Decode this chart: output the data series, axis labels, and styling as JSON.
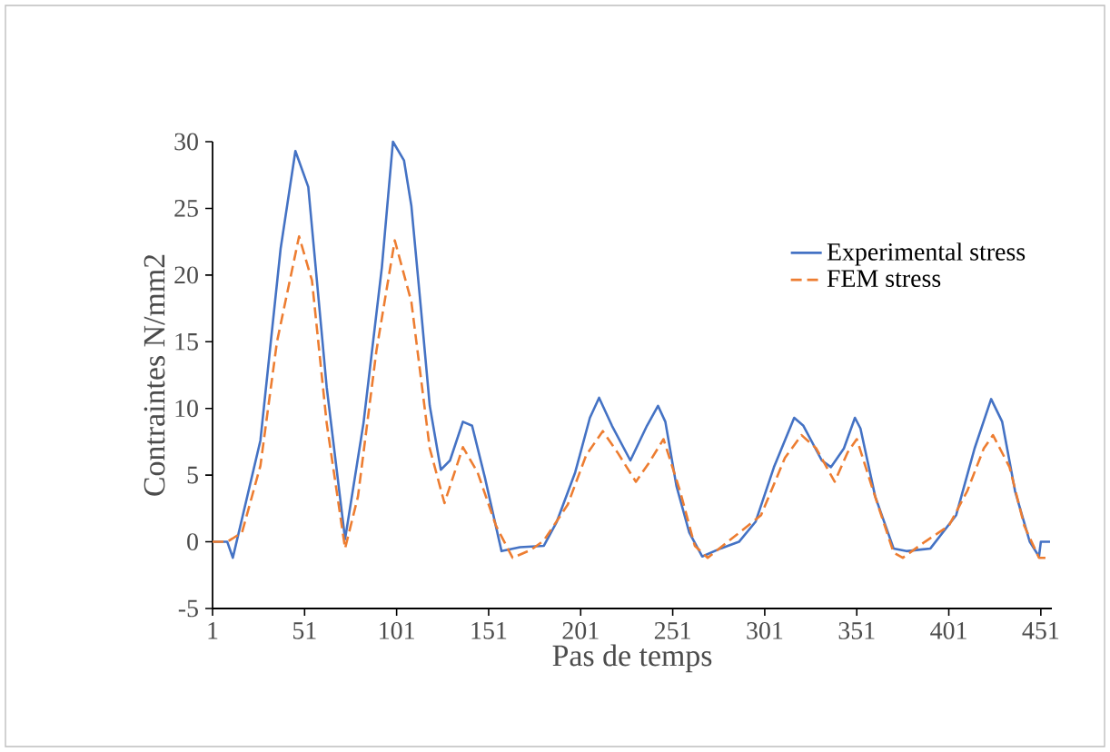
{
  "chart_data": {
    "type": "line",
    "xlabel": "Pas de temps",
    "ylabel": "Contraintes N/mm2",
    "xlim": [
      1,
      457
    ],
    "ylim": [
      -5,
      30
    ],
    "xticks": [
      1,
      51,
      101,
      151,
      201,
      251,
      301,
      351,
      401,
      451
    ],
    "yticks": [
      -5,
      0,
      5,
      10,
      15,
      20,
      25,
      30
    ],
    "grid": false,
    "legend": "top right",
    "marker": "none",
    "series": [
      {
        "name": "Experimental stress",
        "color": "#4472c4",
        "line_style": "solid",
        "x": [
          1,
          9,
          12,
          27,
          38,
          46,
          53,
          63,
          73,
          83,
          93,
          99,
          105,
          109,
          114,
          119,
          125,
          130,
          137,
          142,
          149,
          158,
          168,
          181,
          188,
          198,
          206,
          211,
          218,
          228,
          237,
          243,
          247,
          253,
          260,
          267,
          277,
          287,
          296,
          306,
          317,
          322,
          332,
          337,
          344,
          350,
          353,
          361,
          371,
          378,
          391,
          405,
          415,
          424,
          430,
          437,
          445,
          450,
          451,
          456
        ],
        "values": [
          0,
          0,
          -1.2,
          7.6,
          22,
          29.3,
          26.6,
          11.6,
          0.2,
          8.9,
          20.6,
          30,
          28.6,
          25.2,
          17.8,
          10.2,
          5.4,
          6.1,
          9,
          8.7,
          4.8,
          -0.7,
          -0.4,
          -0.3,
          1.5,
          5.2,
          9.3,
          10.8,
          8.7,
          6.1,
          8.7,
          10.2,
          9,
          4.2,
          0.7,
          -1.1,
          -0.5,
          0,
          1.5,
          5.6,
          9.3,
          8.7,
          6.1,
          5.6,
          7,
          9.3,
          8.5,
          3.4,
          -0.5,
          -0.7,
          -0.5,
          2,
          7,
          10.7,
          9,
          3.8,
          0,
          -1.1,
          0,
          0
        ]
      },
      {
        "name": "FEM stress",
        "color": "#ed7d31",
        "line_style": "dashed",
        "x": [
          1,
          9,
          17,
          27,
          36,
          48,
          55,
          63,
          73,
          80,
          90,
          100,
          109,
          119,
          127,
          137,
          145,
          155,
          164,
          174,
          181,
          194,
          204,
          213,
          221,
          231,
          238,
          246,
          255,
          263,
          270,
          280,
          299,
          312,
          321,
          329,
          339,
          346,
          351,
          360,
          371,
          376,
          388,
          401,
          411,
          420,
          425,
          434,
          442,
          450,
          456
        ],
        "values": [
          0,
          0,
          0.7,
          5.7,
          15,
          22.9,
          19.6,
          8.9,
          -0.5,
          3.4,
          14.3,
          22.6,
          18,
          7,
          2.9,
          7.1,
          5.2,
          1.2,
          -1.2,
          -0.6,
          0.1,
          2.8,
          6.5,
          8.3,
          6.7,
          4.5,
          5.9,
          7.7,
          3.8,
          -0.3,
          -1.2,
          -0.1,
          2,
          6.3,
          8,
          7,
          4.5,
          6.7,
          7.7,
          3.8,
          -0.8,
          -1.2,
          0,
          1.2,
          3.8,
          7,
          8,
          5.6,
          1.2,
          -1.2,
          -1.2
        ]
      }
    ]
  }
}
